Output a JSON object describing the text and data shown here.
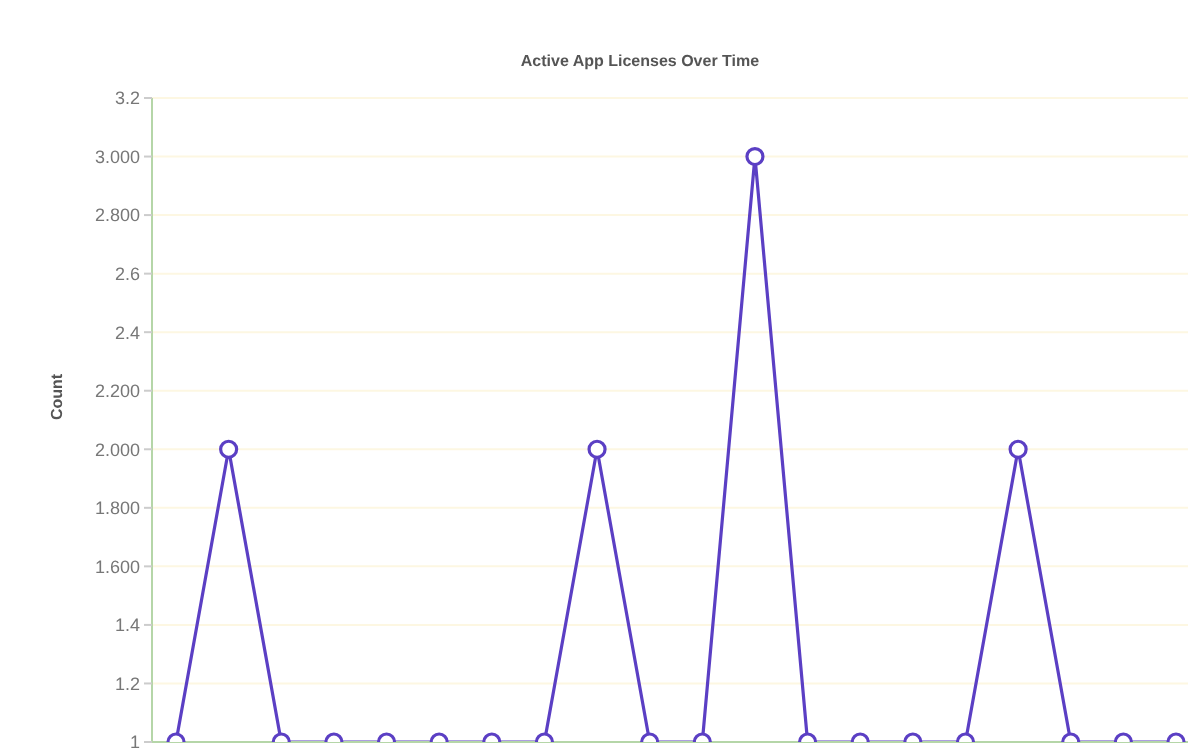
{
  "chart_data": {
    "type": "line",
    "title": "Active App Licenses Over Time",
    "ylabel": "Count",
    "categories": [
      null,
      null,
      null,
      null,
      null,
      null,
      null,
      null,
      null,
      null,
      null,
      null,
      null,
      null,
      null,
      null,
      null,
      null,
      null,
      null
    ],
    "series": [
      {
        "color": "#5b3fc4",
        "values": [
          1,
          2,
          1,
          1,
          1,
          1,
          1,
          1,
          2,
          1,
          1,
          3,
          1,
          1,
          1,
          1,
          2,
          1,
          1,
          1
        ]
      }
    ],
    "ylim": [
      1,
      3.2
    ],
    "yticks": [
      1,
      1.2,
      1.4,
      {
        "value": 1.6,
        "label": "1.600"
      },
      {
        "value": 1.8,
        "label": "1.800"
      },
      {
        "value": 2,
        "label": "2.000"
      },
      {
        "value": 2.2,
        "label": "2.200"
      },
      2.4,
      2.6,
      {
        "value": 2.8,
        "label": "2.800"
      },
      {
        "value": 3,
        "label": "3.000"
      },
      3.2
    ],
    "grid": true,
    "marker": "circle",
    "line_style": "solid",
    "tick_labels": "y"
  }
}
